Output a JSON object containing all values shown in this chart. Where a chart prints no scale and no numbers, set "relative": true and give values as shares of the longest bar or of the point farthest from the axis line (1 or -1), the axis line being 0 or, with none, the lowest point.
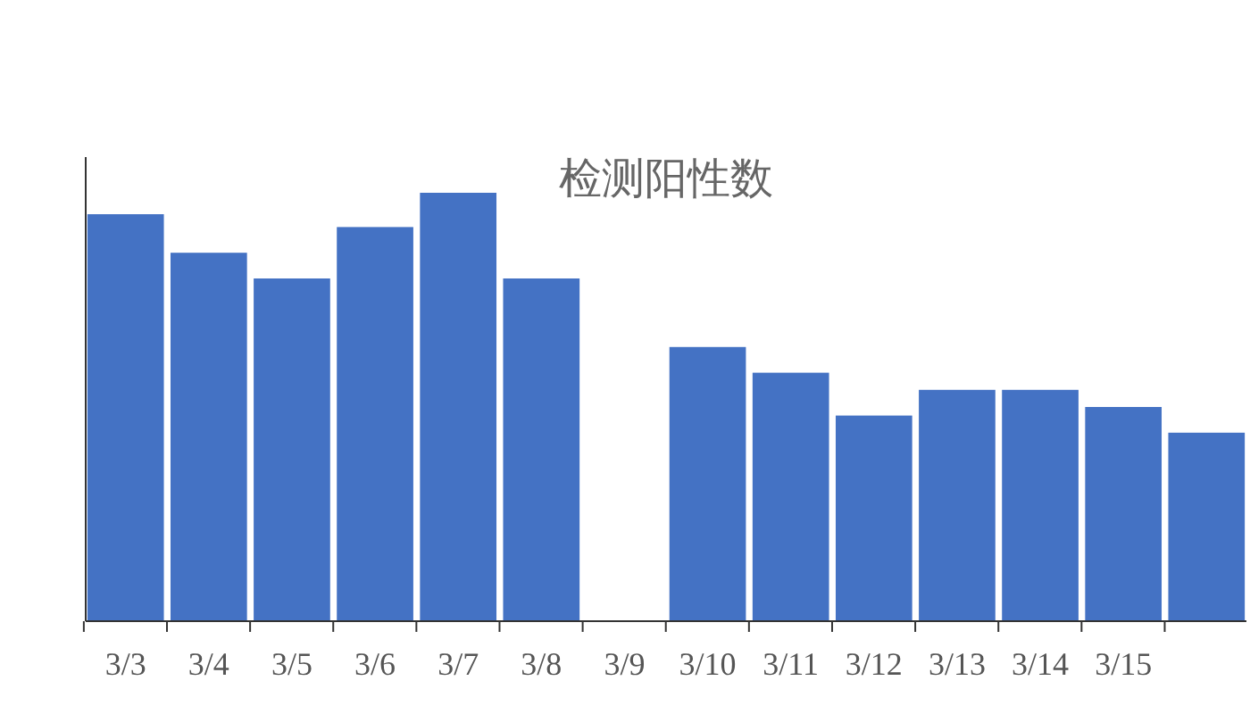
{
  "chart_data": {
    "type": "bar",
    "title": "检测阳性数",
    "relative": true,
    "categories": [
      "3/3",
      "3/4",
      "3/5",
      "3/6",
      "3/7",
      "3/8",
      "3/9",
      "3/10",
      "3/11",
      "3/12",
      "3/13",
      "3/14",
      "3/15",
      null
    ],
    "values": [
      0.95,
      0.86,
      0.8,
      0.92,
      1,
      0.8,
      null,
      0.64,
      0.58,
      0.48,
      0.54,
      0.54,
      0.5,
      0.44
    ],
    "color": "#4472c4"
  }
}
